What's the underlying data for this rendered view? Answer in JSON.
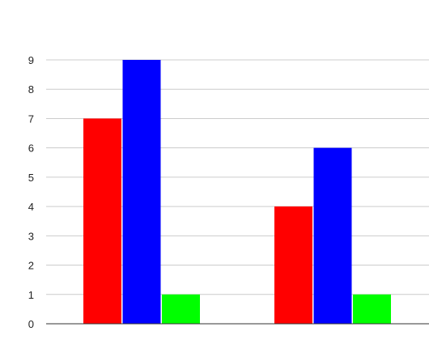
{
  "chart_data": {
    "type": "bar",
    "title": "",
    "xlabel": "",
    "ylabel": "",
    "categories": [
      "",
      ""
    ],
    "series": [
      {
        "color": "#ff0000",
        "values": [
          7,
          4
        ]
      },
      {
        "color": "#0000ff",
        "values": [
          9,
          6
        ]
      },
      {
        "color": "#00ff00",
        "values": [
          1,
          1
        ]
      }
    ],
    "ylim": [
      0,
      9
    ],
    "yticks": [
      0,
      1,
      2,
      3,
      4,
      5,
      6,
      7,
      8,
      9
    ],
    "grid": true,
    "legend": "none"
  }
}
